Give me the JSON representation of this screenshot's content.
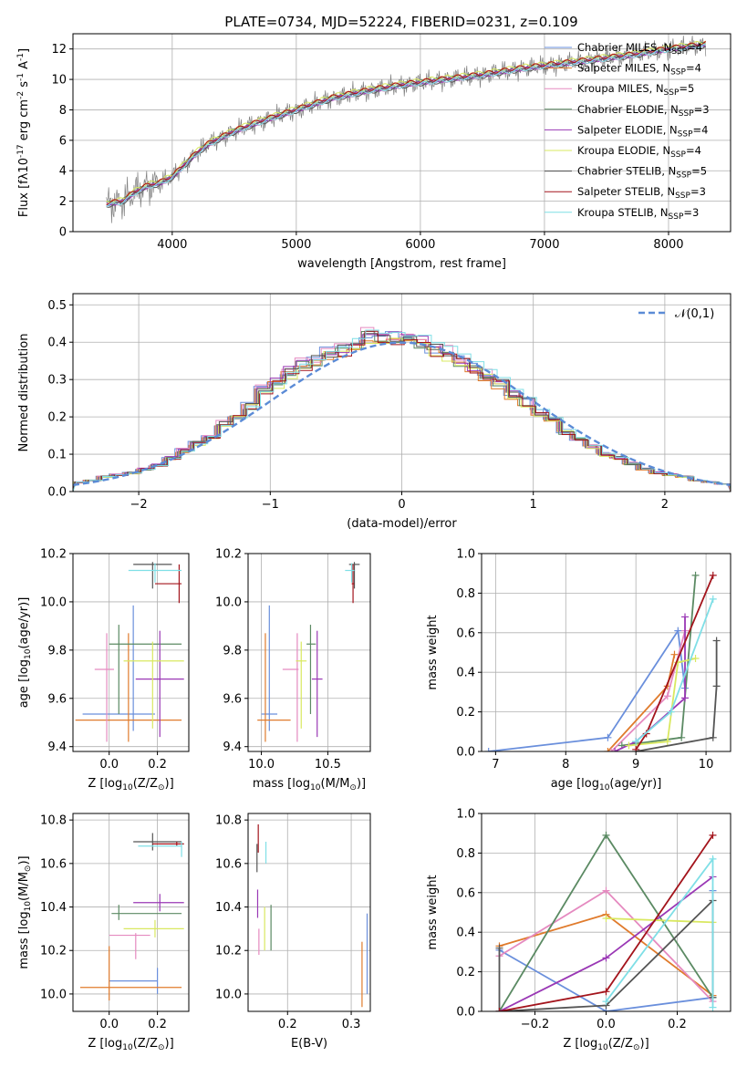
{
  "figure_title": "PLATE=0734, MJD=52224, FIBERID=0231, z=0.109",
  "model_colors": [
    "#6a8fdc",
    "#e07b2c",
    "#e58ac0",
    "#5b8a63",
    "#9a38b5",
    "#d9e860",
    "#555555",
    "#a3141c",
    "#7fdfe6"
  ],
  "panels": [
    {
      "id": "spectrum",
      "type": "line",
      "xlabel": "wavelength [Angstrom, rest frame]",
      "ylabel": "Flux [f$\\lambda$10$^{-17}$ erg cm$^{-2}$ s$^{-1}$ A$^{-1}$]",
      "xlim": [
        3200,
        8500
      ],
      "ylim": [
        0,
        13
      ],
      "xticks": [
        4000,
        5000,
        6000,
        7000,
        8000
      ],
      "yticks": [
        0,
        2,
        4,
        6,
        8,
        10,
        12
      ],
      "legend": "upper right",
      "legend_entries": [
        "Chabrier MILES, N_SSP=4",
        "Salpeter MILES, N_SSP=4",
        "Kroupa MILES, N_SSP=5",
        "Chabrier ELODIE, N_SSP=3",
        "Salpeter ELODIE, N_SSP=4",
        "Kroupa ELODIE, N_SSP=4",
        "Chabrier STELIB, N_SSP=5",
        "Salpeter STELIB, N_SSP=3",
        "Kroupa STELIB, N_SSP=3"
      ],
      "data_color": "#808080",
      "continuum": {
        "x": [
          3470,
          3600,
          3700,
          3800,
          3900,
          4000,
          4100,
          4200,
          4300,
          4400,
          4500,
          4700,
          5000,
          5300,
          5600,
          5900,
          6200,
          6500,
          6800,
          7100,
          7400,
          7700,
          8000,
          8300
        ],
        "y": [
          1.8,
          2.0,
          2.6,
          3.0,
          3.2,
          3.6,
          4.4,
          5.2,
          5.8,
          6.2,
          6.6,
          7.2,
          8.0,
          8.8,
          9.3,
          9.7,
          10.0,
          10.3,
          10.7,
          11.0,
          11.3,
          11.6,
          12.0,
          12.3
        ]
      },
      "model_offsets": [
        0.0,
        0.1,
        -0.1,
        0.05,
        -0.05,
        0.15,
        -0.12,
        0.08,
        -0.08
      ]
    },
    {
      "id": "residuals",
      "type": "histogram",
      "xlabel": "(data-model)/error",
      "ylabel": "Normed distribution",
      "xlim": [
        -2.5,
        2.5
      ],
      "ylim": [
        0,
        0.53
      ],
      "xticks": [
        -2,
        -1,
        0,
        1,
        2
      ],
      "yticks": [
        0.0,
        0.1,
        0.2,
        0.3,
        0.4,
        0.5
      ],
      "legend": "upper right",
      "legend_entries": [
        "$\\mathcal{N}(0,1)$"
      ],
      "gaussian_color": "#5b8bd6",
      "bin_edges": [
        -2.5,
        -2.4,
        -2.3,
        -2.2,
        -2.1,
        -2.0,
        -1.9,
        -1.8,
        -1.7,
        -1.6,
        -1.5,
        -1.4,
        -1.3,
        -1.2,
        -1.1,
        -1.0,
        -0.9,
        -0.8,
        -0.7,
        -0.6,
        -0.5,
        -0.4,
        -0.3,
        -0.2,
        -0.1,
        0.0,
        0.1,
        0.2,
        0.3,
        0.4,
        0.5,
        0.6,
        0.7,
        0.8,
        0.9,
        1.0,
        1.1,
        1.2,
        1.3,
        1.4,
        1.5,
        1.6,
        1.7,
        1.8,
        1.9,
        2.0,
        2.1,
        2.2,
        2.3,
        2.4,
        2.5
      ],
      "density": [
        0.025,
        0.03,
        0.04,
        0.045,
        0.05,
        0.06,
        0.07,
        0.09,
        0.11,
        0.13,
        0.15,
        0.18,
        0.2,
        0.23,
        0.27,
        0.29,
        0.32,
        0.34,
        0.35,
        0.37,
        0.38,
        0.4,
        0.42,
        0.41,
        0.41,
        0.4,
        0.4,
        0.38,
        0.37,
        0.35,
        0.33,
        0.31,
        0.29,
        0.26,
        0.24,
        0.21,
        0.19,
        0.16,
        0.14,
        0.12,
        0.1,
        0.09,
        0.075,
        0.06,
        0.05,
        0.045,
        0.04,
        0.03,
        0.025,
        0.02
      ]
    },
    {
      "id": "age-vs-Z",
      "type": "errorbar",
      "xlabel": "Z [log$_{10}$(Z/Z$_\\odot$)]",
      "ylabel": "age  [log$_{10}$(age/yr)]",
      "xlim": [
        -0.15,
        0.33
      ],
      "ylim": [
        9.38,
        10.2
      ],
      "xticks": [
        0.0,
        0.2
      ],
      "yticks": [
        9.4,
        9.6,
        9.8,
        10.0,
        10.2
      ],
      "points": [
        {
          "x": 0.1,
          "y": 9.535,
          "xerr": [
            0.21,
            0.09
          ],
          "yerr": [
            0.07,
            0.45
          ],
          "c": 0
        },
        {
          "x": 0.08,
          "y": 9.51,
          "xerr": [
            0.22,
            0.22
          ],
          "yerr": [
            0.09,
            0.36
          ],
          "c": 1
        },
        {
          "x": -0.01,
          "y": 9.72,
          "xerr": [
            0.05,
            0.03
          ],
          "yerr": [
            0.3,
            0.15
          ],
          "c": 2
        },
        {
          "x": 0.04,
          "y": 9.825,
          "xerr": [
            0.04,
            0.26
          ],
          "yerr": [
            0.29,
            0.08
          ],
          "c": 3
        },
        {
          "x": 0.21,
          "y": 9.68,
          "xerr": [
            0.1,
            0.1
          ],
          "yerr": [
            0.24,
            0.2
          ],
          "c": 4
        },
        {
          "x": 0.18,
          "y": 9.755,
          "xerr": [
            0.12,
            0.13
          ],
          "yerr": [
            0.28,
            0.08
          ],
          "c": 5
        },
        {
          "x": 0.18,
          "y": 10.155,
          "xerr": [
            0.08,
            0.08
          ],
          "yerr": [
            0.1,
            0.01
          ],
          "c": 6
        },
        {
          "x": 0.29,
          "y": 10.075,
          "xerr": [
            0.1,
            0.01
          ],
          "yerr": [
            0.08,
            0.08
          ],
          "c": 7
        },
        {
          "x": 0.19,
          "y": 10.13,
          "xerr": [
            0.11,
            0.11
          ],
          "yerr": [
            0.05,
            0.03
          ],
          "c": 8
        }
      ]
    },
    {
      "id": "age-vs-mass",
      "type": "errorbar",
      "xlabel": "mass [log$_{10}$(M/M$_\\odot$)]",
      "ylabel": "",
      "xlim": [
        9.9,
        10.82
      ],
      "ylim": [
        9.38,
        10.2
      ],
      "xticks": [
        10.0,
        10.5
      ],
      "yticks": [
        9.4,
        9.6,
        9.8,
        10.0,
        10.2
      ],
      "points": [
        {
          "x": 10.06,
          "y": 9.535,
          "xerr": [
            0.06,
            0.06
          ],
          "yerr": [
            0.07,
            0.45
          ],
          "c": 0
        },
        {
          "x": 10.03,
          "y": 9.51,
          "xerr": [
            0.06,
            0.19
          ],
          "yerr": [
            0.09,
            0.36
          ],
          "c": 1
        },
        {
          "x": 10.27,
          "y": 9.72,
          "xerr": [
            0.11,
            0.01
          ],
          "yerr": [
            0.3,
            0.15
          ],
          "c": 2
        },
        {
          "x": 10.37,
          "y": 9.825,
          "xerr": [
            0.03,
            0.04
          ],
          "yerr": [
            0.29,
            0.08
          ],
          "c": 3
        },
        {
          "x": 10.42,
          "y": 9.68,
          "xerr": [
            0.04,
            0.04
          ],
          "yerr": [
            0.24,
            0.2
          ],
          "c": 4
        },
        {
          "x": 10.3,
          "y": 9.755,
          "xerr": [
            0.04,
            0.04
          ],
          "yerr": [
            0.28,
            0.08
          ],
          "c": 5
        },
        {
          "x": 10.7,
          "y": 10.155,
          "xerr": [
            0.04,
            0.04
          ],
          "yerr": [
            0.1,
            0.01
          ],
          "c": 6
        },
        {
          "x": 10.69,
          "y": 10.075,
          "xerr": [
            0.01,
            0.01
          ],
          "yerr": [
            0.08,
            0.08
          ],
          "c": 7
        },
        {
          "x": 10.68,
          "y": 10.13,
          "xerr": [
            0.05,
            0.02
          ],
          "yerr": [
            0.05,
            0.03
          ],
          "c": 8
        }
      ]
    },
    {
      "id": "weight-vs-age",
      "type": "line",
      "xlabel": "age  [log$_{10}$(age/yr)]",
      "ylabel": "mass weight",
      "xlim": [
        6.8,
        10.35
      ],
      "ylim": [
        0,
        1
      ],
      "xticks": [
        7,
        8,
        9,
        10
      ],
      "yticks": [
        0.0,
        0.2,
        0.4,
        0.6,
        0.8,
        1.0
      ],
      "series": [
        {
          "c": 0,
          "x": [
            6.9,
            8.6,
            9.6,
            9.7
          ],
          "y": [
            0.0,
            0.07,
            0.61,
            0.32
          ]
        },
        {
          "c": 1,
          "x": [
            8.6,
            9.45,
            9.55
          ],
          "y": [
            0.0,
            0.33,
            0.49
          ]
        },
        {
          "c": 2,
          "x": [
            8.65,
            9.45,
            9.7
          ],
          "y": [
            0.0,
            0.28,
            0.61
          ]
        },
        {
          "c": 3,
          "x": [
            8.8,
            9.65,
            9.85
          ],
          "y": [
            0.03,
            0.07,
            0.89
          ]
        },
        {
          "c": 4,
          "x": [
            8.7,
            9.0,
            9.7,
            9.7
          ],
          "y": [
            0.0,
            0.05,
            0.27,
            0.68
          ]
        },
        {
          "c": 5,
          "x": [
            8.9,
            9.45,
            9.6,
            9.85
          ],
          "y": [
            0.03,
            0.05,
            0.45,
            0.47
          ]
        },
        {
          "c": 6,
          "x": [
            9.0,
            10.1,
            10.15,
            10.15
          ],
          "y": [
            0.0,
            0.07,
            0.33,
            0.56
          ]
        },
        {
          "c": 7,
          "x": [
            9.0,
            9.15,
            10.1
          ],
          "y": [
            0.01,
            0.09,
            0.89
          ]
        },
        {
          "c": 8,
          "x": [
            9.0,
            9.5,
            10.1
          ],
          "y": [
            0.05,
            0.2,
            0.77
          ]
        }
      ]
    },
    {
      "id": "mass-vs-Z",
      "type": "errorbar",
      "xlabel": "Z [log$_{10}$(Z/Z$_\\odot$)]",
      "ylabel": "mass [log$_{10}$(M/M$_\\odot$)]",
      "xlim": [
        -0.15,
        0.33
      ],
      "ylim": [
        9.92,
        10.83
      ],
      "xticks": [
        0.0,
        0.2
      ],
      "yticks": [
        10.0,
        10.2,
        10.4,
        10.6,
        10.8
      ],
      "points": [
        {
          "x": 0.2,
          "y": 10.06,
          "xerr": [
            0.2,
            0.0
          ],
          "yerr": [
            0.06,
            0.06
          ],
          "c": 0
        },
        {
          "x": 0.0,
          "y": 10.03,
          "xerr": [
            0.12,
            0.3
          ],
          "yerr": [
            0.06,
            0.19
          ],
          "c": 1
        },
        {
          "x": 0.11,
          "y": 10.27,
          "xerr": [
            0.11,
            0.06
          ],
          "yerr": [
            0.11,
            0.01
          ],
          "c": 2
        },
        {
          "x": 0.04,
          "y": 10.37,
          "xerr": [
            0.03,
            0.26
          ],
          "yerr": [
            0.03,
            0.04
          ],
          "c": 3
        },
        {
          "x": 0.21,
          "y": 10.42,
          "xerr": [
            0.11,
            0.1
          ],
          "yerr": [
            0.04,
            0.04
          ],
          "c": 4
        },
        {
          "x": 0.19,
          "y": 10.3,
          "xerr": [
            0.13,
            0.12
          ],
          "yerr": [
            0.04,
            0.04
          ],
          "c": 5
        },
        {
          "x": 0.18,
          "y": 10.7,
          "xerr": [
            0.08,
            0.12
          ],
          "yerr": [
            0.04,
            0.04
          ],
          "c": 6
        },
        {
          "x": 0.28,
          "y": 10.69,
          "xerr": [
            0.1,
            0.03
          ],
          "yerr": [
            0.01,
            0.01
          ],
          "c": 7
        },
        {
          "x": 0.3,
          "y": 10.68,
          "xerr": [
            0.18,
            0.0
          ],
          "yerr": [
            0.05,
            0.02
          ],
          "c": 8
        }
      ]
    },
    {
      "id": "mass-vs-EBV",
      "type": "errorbar",
      "xlabel": "E(B-V)",
      "ylabel": "",
      "xlim": [
        0.138,
        0.33
      ],
      "ylim": [
        9.92,
        10.83
      ],
      "xticks": [
        0.2,
        0.3
      ],
      "yticks": [
        10.0,
        10.2,
        10.4,
        10.6,
        10.8
      ],
      "points": [
        {
          "x": 0.325,
          "y": 10.2,
          "xerr": [
            0,
            0
          ],
          "yerr": [
            0.2,
            0.17
          ],
          "c": 0
        },
        {
          "x": 0.317,
          "y": 10.05,
          "xerr": [
            0,
            0
          ],
          "yerr": [
            0.11,
            0.19
          ],
          "c": 1
        },
        {
          "x": 0.155,
          "y": 10.27,
          "xerr": [
            0,
            0
          ],
          "yerr": [
            0.09,
            0.03
          ],
          "c": 2
        },
        {
          "x": 0.174,
          "y": 10.3,
          "xerr": [
            0,
            0
          ],
          "yerr": [
            0.1,
            0.11
          ],
          "c": 3
        },
        {
          "x": 0.153,
          "y": 10.41,
          "xerr": [
            0,
            0
          ],
          "yerr": [
            0.06,
            0.07
          ],
          "c": 4
        },
        {
          "x": 0.164,
          "y": 10.3,
          "xerr": [
            0,
            0
          ],
          "yerr": [
            0.1,
            0.1
          ],
          "c": 5
        },
        {
          "x": 0.152,
          "y": 10.6,
          "xerr": [
            0,
            0
          ],
          "yerr": [
            0.04,
            0.09
          ],
          "c": 6
        },
        {
          "x": 0.154,
          "y": 10.7,
          "xerr": [
            0,
            0
          ],
          "yerr": [
            0.05,
            0.08
          ],
          "c": 7
        },
        {
          "x": 0.166,
          "y": 10.65,
          "xerr": [
            0,
            0
          ],
          "yerr": [
            0.05,
            0.05
          ],
          "c": 8
        }
      ]
    },
    {
      "id": "weight-vs-Z",
      "type": "line",
      "xlabel": "Z [log$_{10}$(Z/Z$_\\odot$)]",
      "ylabel": "mass weight",
      "xlim": [
        -0.35,
        0.35
      ],
      "ylim": [
        0,
        1
      ],
      "xticks": [
        -0.2,
        0.0,
        0.2
      ],
      "yticks": [
        0.0,
        0.2,
        0.4,
        0.6,
        0.8,
        1.0
      ],
      "series": [
        {
          "c": 0,
          "x": [
            -0.3,
            0.0,
            0.3,
            0.3
          ],
          "y": [
            0.31,
            0.0,
            0.07,
            0.61
          ]
        },
        {
          "c": 1,
          "x": [
            -0.3,
            0.0,
            0.3
          ],
          "y": [
            0.33,
            0.49,
            0.08
          ]
        },
        {
          "c": 2,
          "x": [
            -0.3,
            0.0,
            0.3
          ],
          "y": [
            0.28,
            0.61,
            0.05
          ]
        },
        {
          "c": 3,
          "x": [
            -0.3,
            0.0,
            0.3
          ],
          "y": [
            0.0,
            0.89,
            0.07
          ]
        },
        {
          "c": 4,
          "x": [
            -0.3,
            0.0,
            0.3
          ],
          "y": [
            0.0,
            0.27,
            0.68
          ]
        },
        {
          "c": 5,
          "x": [
            0.0,
            0.3
          ],
          "y": [
            0.47,
            0.45
          ]
        },
        {
          "c": 6,
          "x": [
            -0.3,
            -0.3,
            0.0,
            0.3,
            0.3
          ],
          "y": [
            0.32,
            0.0,
            0.03,
            0.56,
            0.07
          ]
        },
        {
          "c": 7,
          "x": [
            -0.3,
            0.0,
            0.3
          ],
          "y": [
            0.0,
            0.1,
            0.89
          ]
        },
        {
          "c": 8,
          "x": [
            0.0,
            0.3,
            0.3
          ],
          "y": [
            0.05,
            0.77,
            0.02
          ]
        }
      ]
    }
  ]
}
